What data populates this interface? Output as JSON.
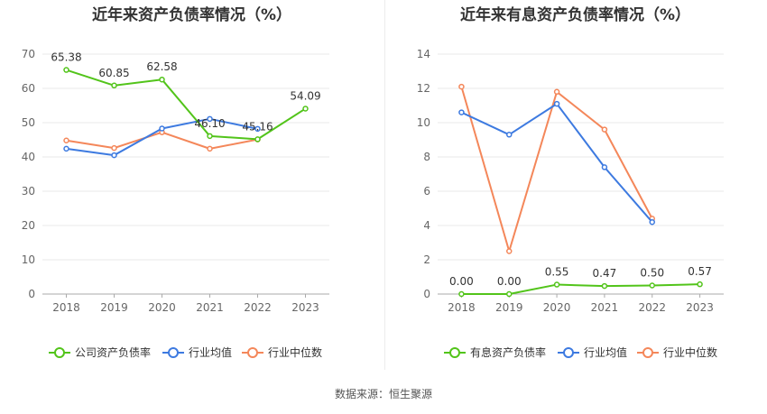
{
  "source_label": "数据来源：恒生聚源",
  "chart_data": [
    {
      "type": "line",
      "title": "近年来资产负债率情况（%）",
      "categories": [
        "2018",
        "2019",
        "2020",
        "2021",
        "2022",
        "2023"
      ],
      "ylim": [
        0,
        70
      ],
      "yticks": [
        0,
        10,
        20,
        30,
        40,
        50,
        60,
        70
      ],
      "grid": true,
      "legend_position": "bottom",
      "series": [
        {
          "name": "公司资产负债率",
          "color": "#52c41a",
          "values": [
            65.38,
            60.85,
            62.58,
            46.1,
            45.16,
            54.09
          ],
          "labels": [
            "65.38",
            "60.85",
            "62.58",
            "46.10",
            "45.16",
            "54.09"
          ]
        },
        {
          "name": "行业均值",
          "color": "#3d7ae0",
          "values": [
            42.4,
            40.5,
            48.3,
            51.1,
            48.2,
            null
          ]
        },
        {
          "name": "行业中位数",
          "color": "#f4875a",
          "values": [
            44.8,
            42.6,
            47.2,
            42.4,
            45.1,
            null
          ]
        }
      ]
    },
    {
      "type": "line",
      "title": "近年来有息资产负债率情况（%）",
      "categories": [
        "2018",
        "2019",
        "2020",
        "2021",
        "2022",
        "2023"
      ],
      "ylim": [
        0,
        14
      ],
      "yticks": [
        0,
        2,
        4,
        6,
        8,
        10,
        12,
        14
      ],
      "grid": true,
      "legend_position": "bottom",
      "series": [
        {
          "name": "有息资产负债率",
          "color": "#52c41a",
          "values": [
            0.0,
            0.0,
            0.55,
            0.47,
            0.5,
            0.57
          ],
          "labels": [
            "0.00",
            "0.00",
            "0.55",
            "0.47",
            "0.50",
            "0.57"
          ]
        },
        {
          "name": "行业均值",
          "color": "#3d7ae0",
          "values": [
            10.6,
            9.3,
            11.1,
            7.4,
            4.2,
            null
          ]
        },
        {
          "name": "行业中位数",
          "color": "#f4875a",
          "values": [
            12.1,
            2.5,
            11.8,
            9.6,
            4.4,
            null
          ]
        }
      ]
    }
  ]
}
